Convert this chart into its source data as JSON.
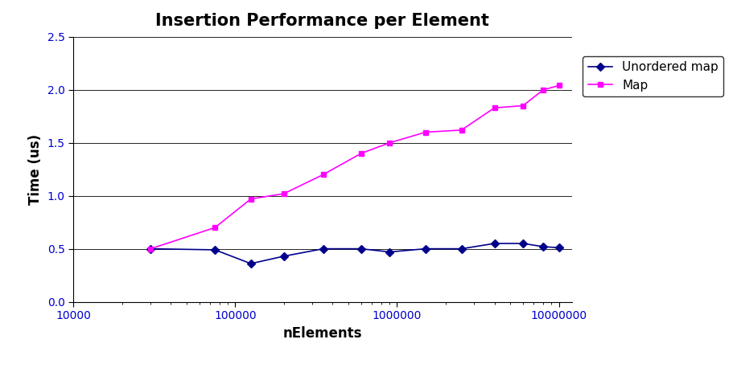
{
  "title": "Insertion Performance per Element",
  "xlabel": "nElements",
  "ylabel": "Time (us)",
  "ylim": [
    0,
    2.5
  ],
  "yticks": [
    0,
    0.5,
    1.0,
    1.5,
    2.0,
    2.5
  ],
  "xticks": [
    10000,
    100000,
    1000000,
    10000000
  ],
  "xticklabels": [
    "10000",
    "100000",
    "1000000",
    "10000000"
  ],
  "xlim": [
    10000,
    12000000
  ],
  "unordered_map": {
    "x": [
      30000,
      75000,
      125000,
      200000,
      350000,
      600000,
      900000,
      1500000,
      2500000,
      4000000,
      6000000,
      8000000,
      10000000
    ],
    "y": [
      0.5,
      0.49,
      0.36,
      0.43,
      0.5,
      0.5,
      0.47,
      0.5,
      0.5,
      0.55,
      0.55,
      0.52,
      0.51
    ],
    "color": "#00008B",
    "marker": "D",
    "markersize": 5,
    "linewidth": 1.2,
    "label": "Unordered map"
  },
  "map": {
    "x": [
      30000,
      75000,
      125000,
      200000,
      350000,
      600000,
      900000,
      1500000,
      2500000,
      4000000,
      6000000,
      8000000,
      10000000
    ],
    "y": [
      0.5,
      0.7,
      0.97,
      1.02,
      1.2,
      1.4,
      1.5,
      1.6,
      1.62,
      1.83,
      1.85,
      2.0,
      2.04
    ],
    "color": "#FF00FF",
    "marker": "s",
    "markersize": 5,
    "linewidth": 1.2,
    "label": "Map"
  },
  "title_fontsize": 15,
  "axis_label_fontsize": 12,
  "tick_fontsize": 10,
  "tick_color": "#0000CC",
  "legend_fontsize": 11,
  "background_color": "#ffffff",
  "grid_color": "#000000",
  "grid_linewidth": 0.6,
  "spine_color": "#000000"
}
